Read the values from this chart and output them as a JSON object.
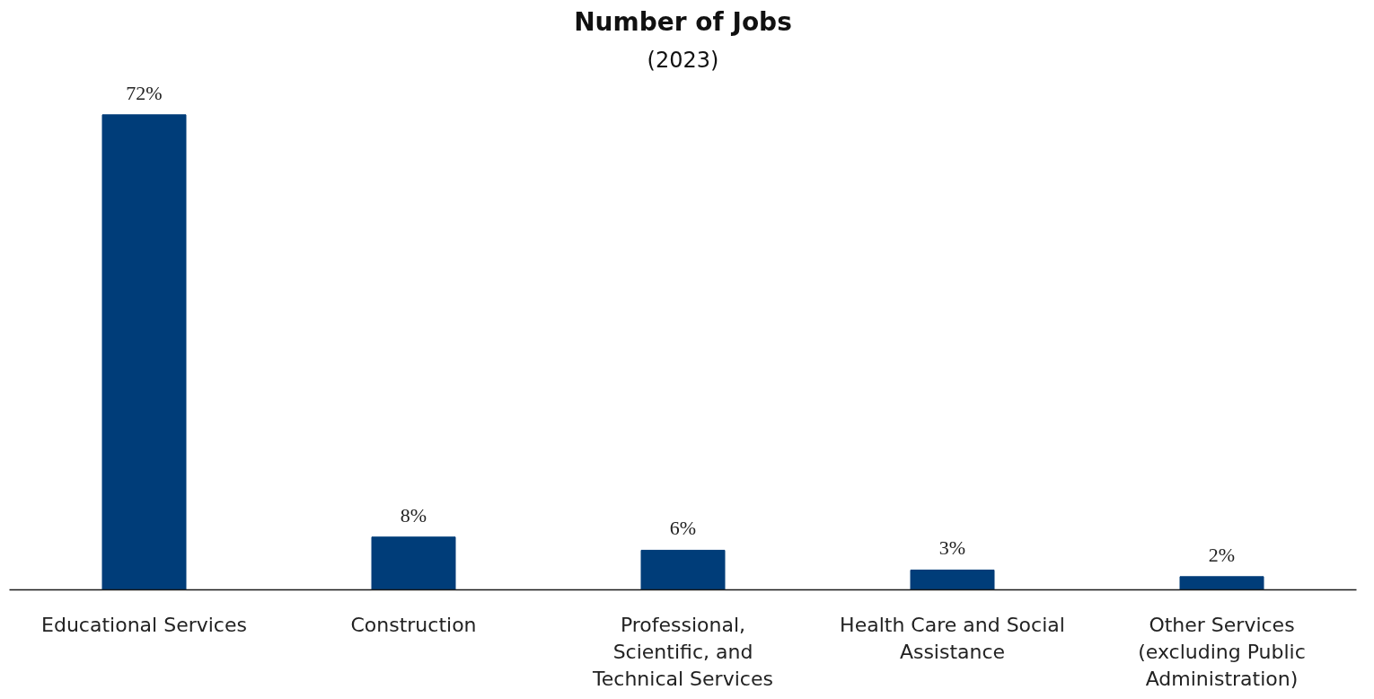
{
  "chart_data": {
    "type": "bar",
    "title": "Number of Jobs",
    "subtitle": "(2023)",
    "categories": [
      "Educational Services",
      "Construction",
      "Professional, Scientific, and Technical Services",
      "Health Care and Social Assistance",
      "Other Services (excluding Public Administration)"
    ],
    "values": [
      72,
      8,
      6,
      3,
      2
    ],
    "value_labels": [
      "72%",
      "8%",
      "6%",
      "3%",
      "2%"
    ],
    "color": "#003d79",
    "grid": false
  }
}
